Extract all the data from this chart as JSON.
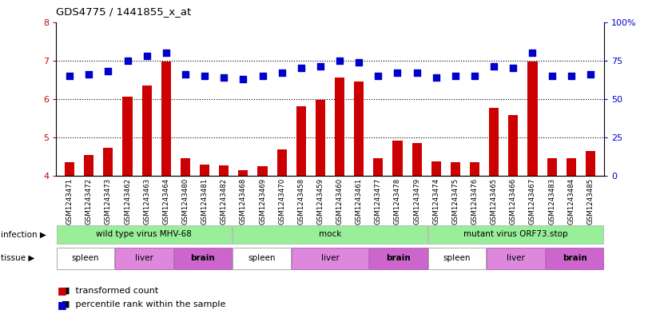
{
  "title": "GDS4775 / 1441855_x_at",
  "samples": [
    "GSM1243471",
    "GSM1243472",
    "GSM1243473",
    "GSM1243462",
    "GSM1243463",
    "GSM1243464",
    "GSM1243480",
    "GSM1243481",
    "GSM1243482",
    "GSM1243468",
    "GSM1243469",
    "GSM1243470",
    "GSM1243458",
    "GSM1243459",
    "GSM1243460",
    "GSM1243461",
    "GSM1243477",
    "GSM1243478",
    "GSM1243479",
    "GSM1243474",
    "GSM1243475",
    "GSM1243476",
    "GSM1243465",
    "GSM1243466",
    "GSM1243467",
    "GSM1243483",
    "GSM1243484",
    "GSM1243485"
  ],
  "bar_values": [
    4.35,
    4.55,
    4.73,
    6.05,
    6.35,
    6.98,
    4.45,
    4.3,
    4.27,
    4.15,
    4.25,
    4.68,
    5.8,
    5.97,
    6.55,
    6.45,
    4.45,
    4.92,
    4.85,
    4.38,
    4.35,
    4.35,
    5.77,
    5.58,
    6.98,
    4.45,
    4.45,
    4.65
  ],
  "percentile_values": [
    65,
    66,
    68,
    75,
    78,
    80,
    66,
    65,
    64,
    63,
    65,
    67,
    70,
    71,
    75,
    74,
    65,
    67,
    67,
    64,
    65,
    65,
    71,
    70,
    80,
    65,
    65,
    66
  ],
  "ylim_left": [
    4,
    8
  ],
  "ylim_right": [
    0,
    100
  ],
  "yticks_left": [
    4,
    5,
    6,
    7,
    8
  ],
  "yticks_right": [
    0,
    25,
    50,
    75,
    100
  ],
  "infection_groups": [
    {
      "label": "wild type virus MHV-68",
      "start": 0,
      "end": 9
    },
    {
      "label": "mock",
      "start": 9,
      "end": 19
    },
    {
      "label": "mutant virus ORF73.stop",
      "start": 19,
      "end": 28
    }
  ],
  "tissue_groups": [
    {
      "label": "spleen",
      "start": 0,
      "end": 3,
      "color": "#ffffff"
    },
    {
      "label": "liver",
      "start": 3,
      "end": 6,
      "color": "#DD88DD"
    },
    {
      "label": "brain",
      "start": 6,
      "end": 9,
      "color": "#CC66CC"
    },
    {
      "label": "spleen",
      "start": 9,
      "end": 12,
      "color": "#ffffff"
    },
    {
      "label": "liver",
      "start": 12,
      "end": 16,
      "color": "#DD88DD"
    },
    {
      "label": "brain",
      "start": 16,
      "end": 19,
      "color": "#CC66CC"
    },
    {
      "label": "spleen",
      "start": 19,
      "end": 22,
      "color": "#ffffff"
    },
    {
      "label": "liver",
      "start": 22,
      "end": 25,
      "color": "#DD88DD"
    },
    {
      "label": "brain",
      "start": 25,
      "end": 28,
      "color": "#CC66CC"
    }
  ],
  "bar_color": "#CC0000",
  "dot_color": "#0000CC",
  "infection_color": "#99EE99",
  "bar_width": 0.5,
  "dot_size": 35,
  "background_color": "#ffffff"
}
